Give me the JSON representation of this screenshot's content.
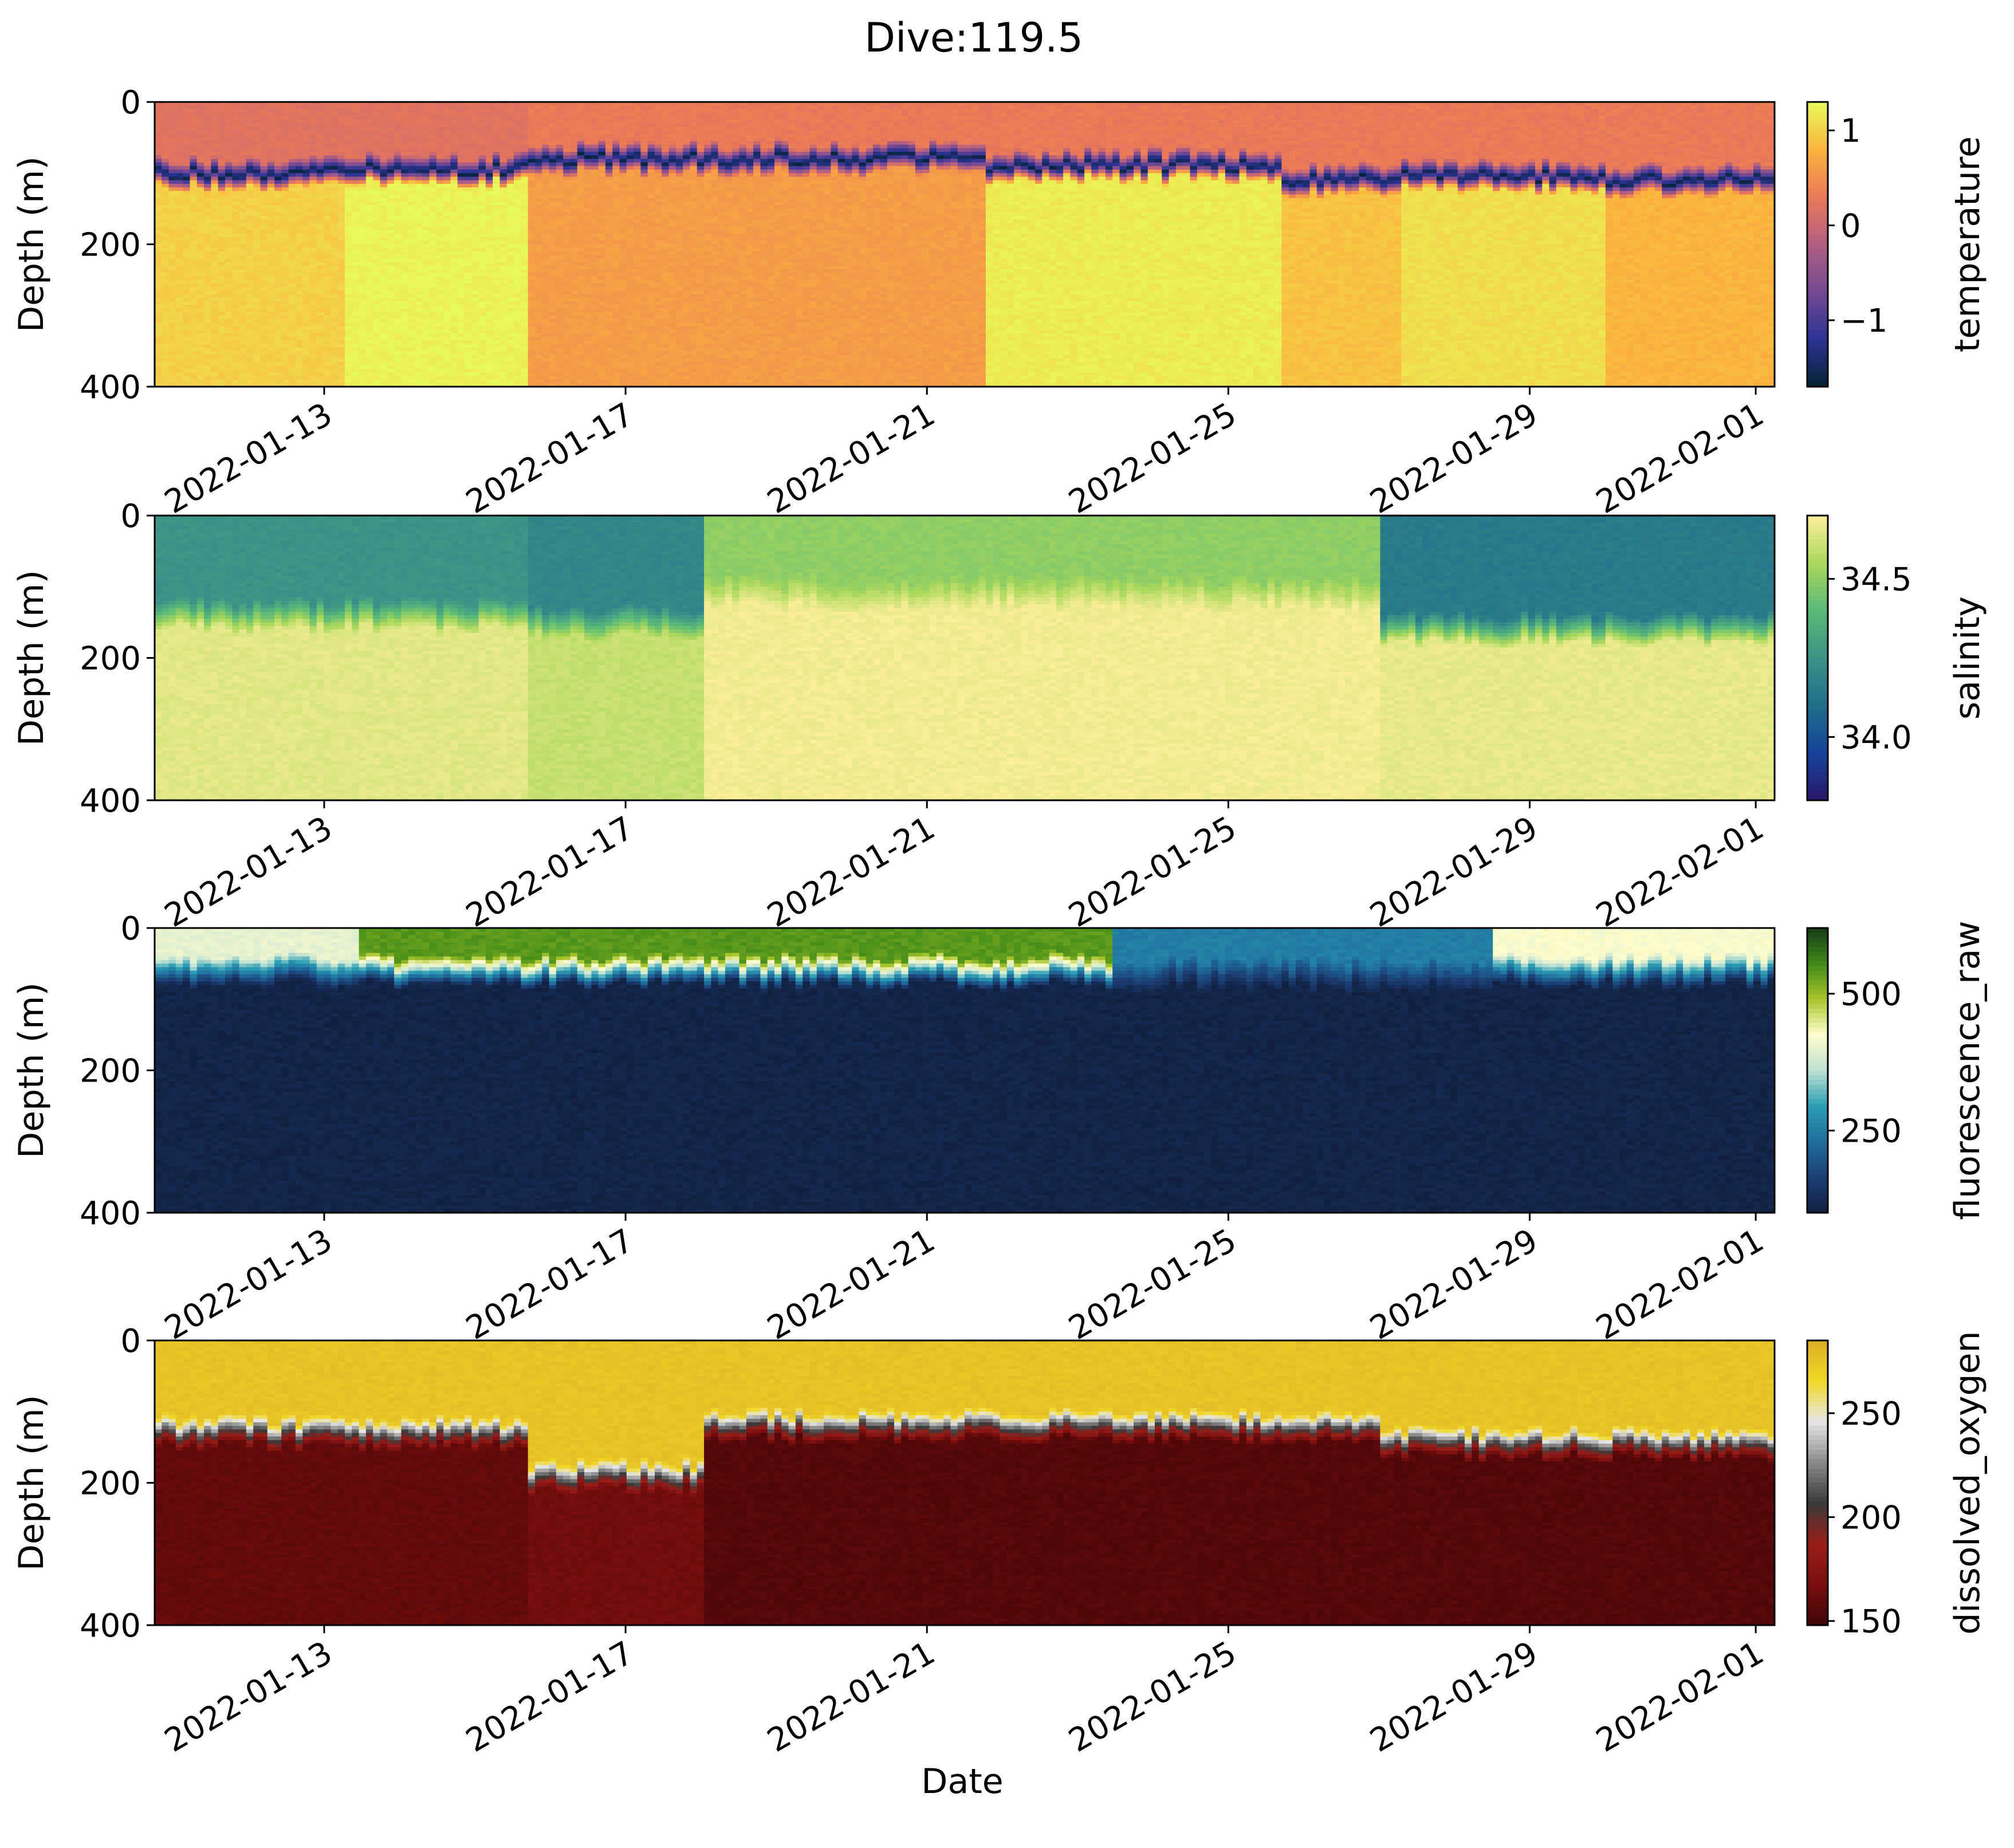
{
  "chart_data": {
    "type": "heatmap",
    "title": "Dive:119.5",
    "xlabel": "Date",
    "x_range": [
      "2022-01-10T18:00",
      "2022-02-01T06:00"
    ],
    "x_ticks": [
      "2022-01-13",
      "2022-01-17",
      "2022-01-21",
      "2022-01-25",
      "2022-01-29",
      "2022-02-01"
    ],
    "ylabel": "Depth (m)",
    "ylim": [
      400,
      0
    ],
    "y_ticks": [
      0,
      200,
      400
    ],
    "panels": [
      {
        "variable": "temperature",
        "colormap": "thermal",
        "colorbar_range": [
          -1.7,
          1.3
        ],
        "colorbar_ticks": [
          {
            "label": "1",
            "value": 1
          },
          {
            "label": "0",
            "value": 0
          },
          {
            "label": "−1",
            "value": -1
          }
        ],
        "segments": [
          {
            "start": "2022-01-10T18:00",
            "end": "2022-01-13T06:00",
            "surface_value": 0.2,
            "cline_depth": 80,
            "deep_value": 1.0
          },
          {
            "start": "2022-01-13T06:00",
            "end": "2022-01-15T18:00",
            "surface_value": 0.2,
            "cline_depth": 75,
            "deep_value": 1.25
          },
          {
            "start": "2022-01-15T18:00",
            "end": "2022-01-21T18:00",
            "surface_value": 0.3,
            "cline_depth": 60,
            "deep_value": 0.6
          },
          {
            "start": "2022-01-21T18:00",
            "end": "2022-01-25T18:00",
            "surface_value": 0.3,
            "cline_depth": 70,
            "deep_value": 1.2
          },
          {
            "start": "2022-01-25T18:00",
            "end": "2022-01-27T06:00",
            "surface_value": 0.3,
            "cline_depth": 90,
            "deep_value": 0.9
          },
          {
            "start": "2022-01-27T06:00",
            "end": "2022-01-30T00:00",
            "surface_value": 0.3,
            "cline_depth": 85,
            "deep_value": 1.1
          },
          {
            "start": "2022-01-30T00:00",
            "end": "2022-02-01T06:00",
            "surface_value": 0.3,
            "cline_depth": 90,
            "deep_value": 0.8
          }
        ]
      },
      {
        "variable": "salinity",
        "colormap": "haline",
        "colorbar_range": [
          33.8,
          34.7
        ],
        "colorbar_ticks": [
          {
            "label": "34.5",
            "value": 34.5
          },
          {
            "label": "34.0",
            "value": 34.0
          }
        ],
        "segments": [
          {
            "start": "2022-01-10T18:00",
            "end": "2022-01-15T18:00",
            "surface_value": 34.25,
            "cline_depth": 120,
            "deep_value": 34.65
          },
          {
            "start": "2022-01-15T18:00",
            "end": "2022-01-18T00:00",
            "surface_value": 34.2,
            "cline_depth": 130,
            "deep_value": 34.6
          },
          {
            "start": "2022-01-18T00:00",
            "end": "2022-01-27T00:00",
            "surface_value": 34.5,
            "cline_depth": 90,
            "deep_value": 34.68
          },
          {
            "start": "2022-01-27T00:00",
            "end": "2022-02-01T06:00",
            "surface_value": 34.15,
            "cline_depth": 140,
            "deep_value": 34.66
          }
        ]
      },
      {
        "variable": "fluorescence_raw",
        "colormap": "delta",
        "colorbar_range": [
          100,
          620
        ],
        "colorbar_ticks": [
          {
            "label": "500",
            "value": 500
          },
          {
            "label": "250",
            "value": 250
          }
        ],
        "segments": [
          {
            "start": "2022-01-10T18:00",
            "end": "2022-01-13T12:00",
            "surface_value": 400,
            "cline_depth": 40,
            "deep_value": 110
          },
          {
            "start": "2022-01-13T12:00",
            "end": "2022-01-23T12:00",
            "surface_value": 540,
            "cline_depth": 40,
            "deep_value": 110
          },
          {
            "start": "2022-01-23T12:00",
            "end": "2022-01-28T12:00",
            "surface_value": 250,
            "cline_depth": 45,
            "deep_value": 110
          },
          {
            "start": "2022-01-28T12:00",
            "end": "2022-02-01T06:00",
            "surface_value": 420,
            "cline_depth": 40,
            "deep_value": 110
          }
        ]
      },
      {
        "variable": "dissolved_oxygen",
        "colormap": "oxy",
        "colorbar_range": [
          148,
          285
        ],
        "colorbar_ticks": [
          {
            "label": "250",
            "value": 250
          },
          {
            "label": "200",
            "value": 200
          },
          {
            "label": "150",
            "value": 150
          }
        ],
        "segments": [
          {
            "start": "2022-01-10T18:00",
            "end": "2022-01-15T18:00",
            "surface_value": 275,
            "cline_depth": 110,
            "deep_value": 160
          },
          {
            "start": "2022-01-15T18:00",
            "end": "2022-01-18T00:00",
            "surface_value": 275,
            "cline_depth": 170,
            "deep_value": 165
          },
          {
            "start": "2022-01-18T00:00",
            "end": "2022-01-27T00:00",
            "surface_value": 275,
            "cline_depth": 100,
            "deep_value": 155
          },
          {
            "start": "2022-01-27T00:00",
            "end": "2022-02-01T06:00",
            "surface_value": 275,
            "cline_depth": 125,
            "deep_value": 155
          }
        ]
      }
    ]
  }
}
